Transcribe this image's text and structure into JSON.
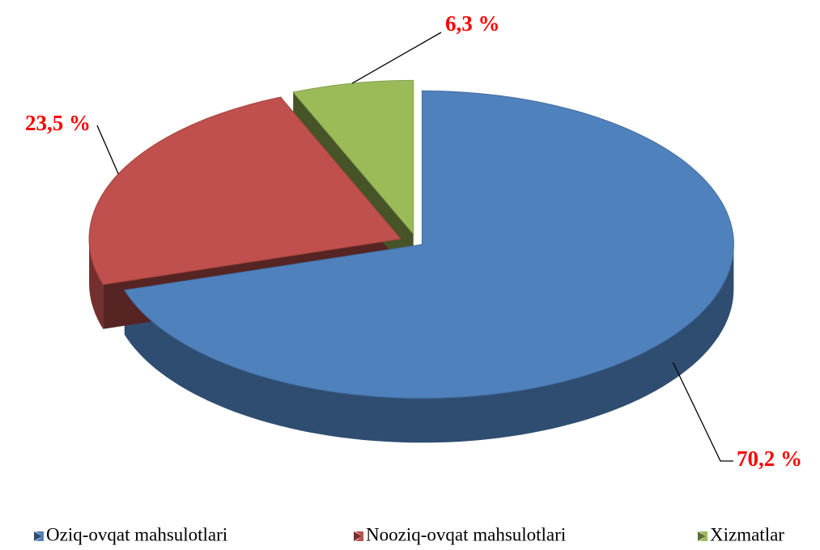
{
  "chart_data": {
    "type": "pie",
    "categories": [
      "Oziq-ovqat mahsulotlari",
      "Nooziq-ovqat mahsulotlari",
      "Xizmatlar"
    ],
    "values": [
      70.2,
      23.5,
      6.3
    ],
    "value_labels": [
      "70,2 %",
      "23,5 %",
      "6,3 %"
    ],
    "colors": [
      "#4f81bd",
      "#c0504d",
      "#9bbb59"
    ],
    "legend": "bottom"
  }
}
